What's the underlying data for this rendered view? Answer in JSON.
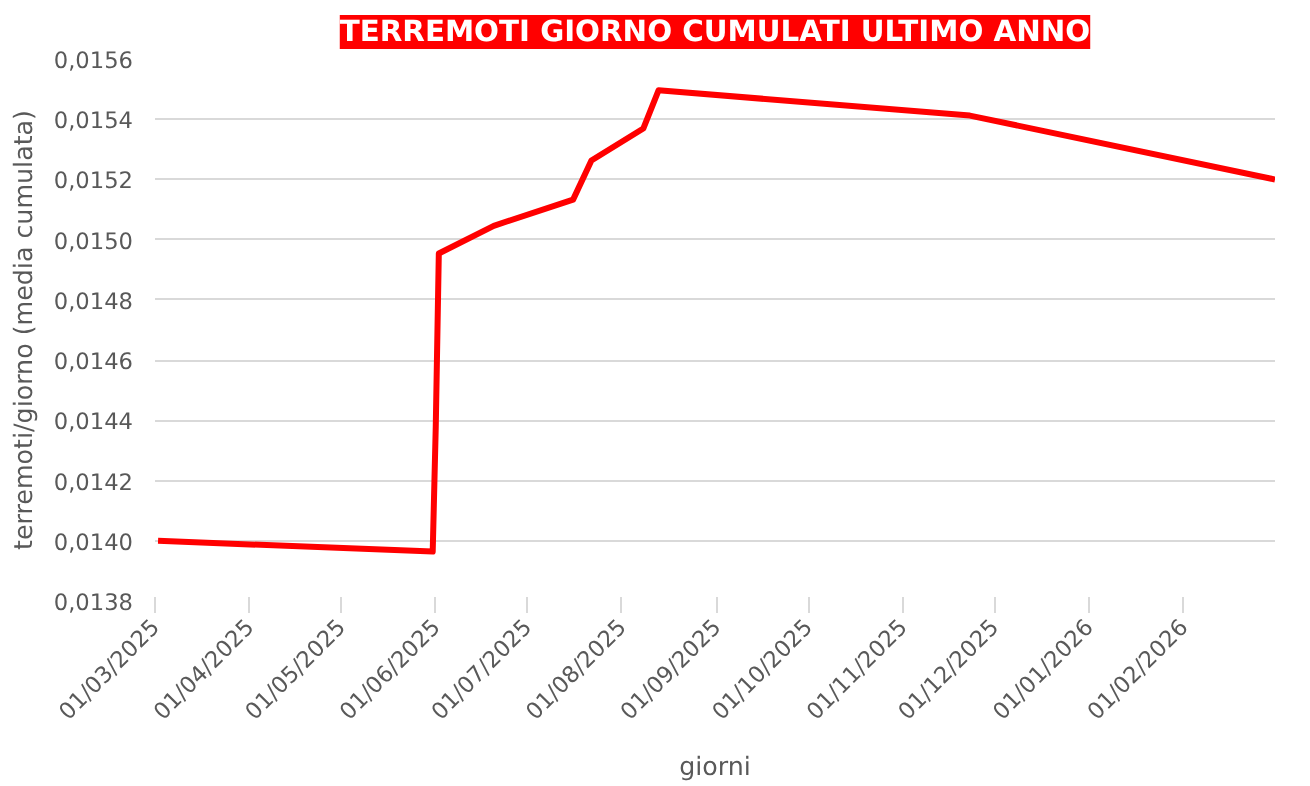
{
  "chart_data": {
    "type": "line",
    "title": "TERREMOTI GIORNO CUMULATI ULTIMO ANNO",
    "xlabel": "giorni",
    "ylabel": "terremoti/giorno (media cumulata)",
    "x": [
      "2025-03-02",
      "2025-05-31",
      "2025-06-01",
      "2025-06-02",
      "2025-06-20",
      "2025-07-16",
      "2025-07-22",
      "2025-08-08",
      "2025-08-13",
      "2025-11-23",
      "2026-03-03"
    ],
    "series": [
      {
        "color": "#ff0000",
        "values": [
          0.014,
          0.013964,
          0.01438,
          0.014954,
          0.015046,
          0.015133,
          0.015263,
          0.015369,
          0.015496,
          0.015412,
          0.0152
        ]
      }
    ],
    "xlim": [
      "2025-03-01",
      "2026-03-03"
    ],
    "xticks": [
      {
        "value": "2025-03-01",
        "label": "01/03/2025"
      },
      {
        "value": "2025-04-01",
        "label": "01/04/2025"
      },
      {
        "value": "2025-05-01",
        "label": "01/05/2025"
      },
      {
        "value": "2025-06-01",
        "label": "01/06/2025"
      },
      {
        "value": "2025-07-01",
        "label": "01/07/2025"
      },
      {
        "value": "2025-08-01",
        "label": "01/08/2025"
      },
      {
        "value": "2025-09-01",
        "label": "01/09/2025"
      },
      {
        "value": "2025-10-01",
        "label": "01/10/2025"
      },
      {
        "value": "2025-11-01",
        "label": "01/11/2025"
      },
      {
        "value": "2025-12-01",
        "label": "01/12/2025"
      },
      {
        "value": "2026-01-01",
        "label": "01/01/2026"
      },
      {
        "value": "2026-02-01",
        "label": "01/02/2026"
      }
    ],
    "ylim": [
      0.0138,
      0.0156
    ],
    "yticks": [
      {
        "value": 0.0138,
        "label": "0,0138"
      },
      {
        "value": 0.014,
        "label": "0,0140"
      },
      {
        "value": 0.0142,
        "label": "0,0142"
      },
      {
        "value": 0.0144,
        "label": "0,0144"
      },
      {
        "value": 0.0146,
        "label": "0,0146"
      },
      {
        "value": 0.0148,
        "label": "0,0148"
      },
      {
        "value": 0.015,
        "label": "0,0150"
      },
      {
        "value": 0.0152,
        "label": "0,0152"
      },
      {
        "value": 0.0154,
        "label": "0,0154"
      },
      {
        "value": 0.0156,
        "label": "0,0156"
      }
    ],
    "grid": "y",
    "marker": "none",
    "line_style": "solid"
  }
}
